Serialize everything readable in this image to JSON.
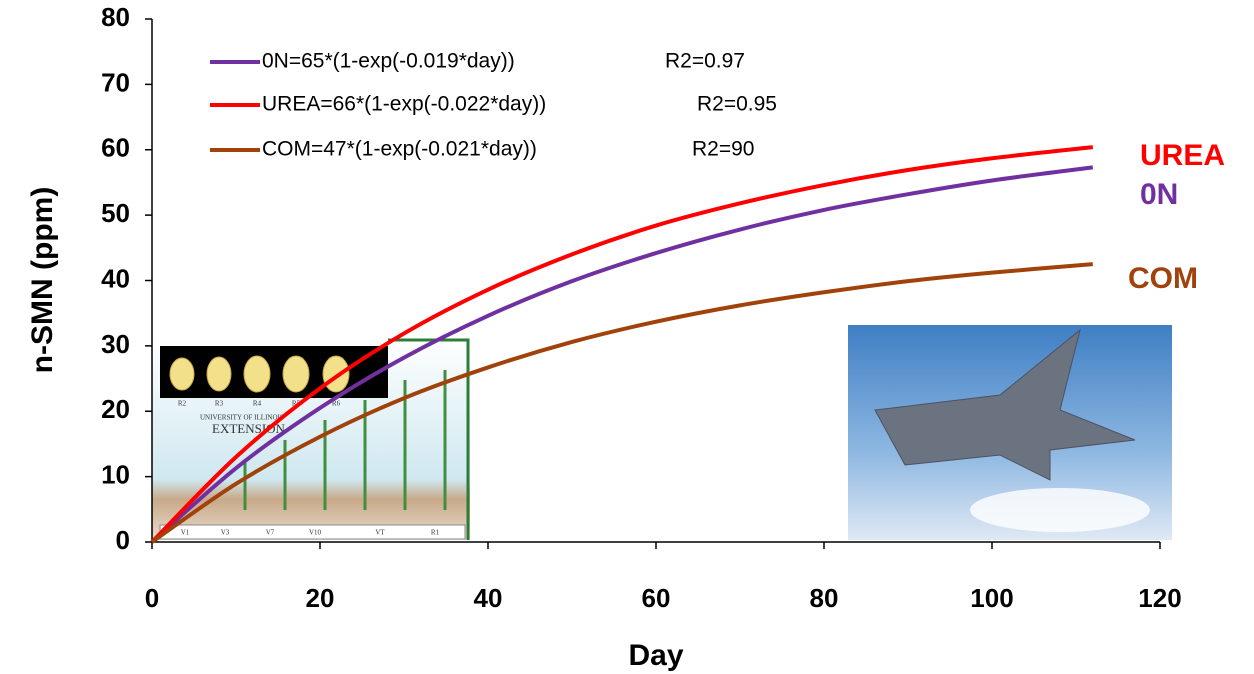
{
  "chart_data": {
    "type": "line",
    "x_label": "Day",
    "y_label": "n-SMN (ppm)",
    "x": [
      0,
      10,
      20,
      30,
      40,
      50,
      60,
      70,
      80,
      90,
      100,
      112
    ],
    "series": [
      {
        "name": "0N=65*(1-exp(-0.019*day))",
        "r2_label": "R2=0.97",
        "end_label": "0N",
        "color": "#7030a0",
        "values": [
          0,
          11.3,
          20.5,
          28.2,
          34.6,
          39.9,
          44.2,
          47.8,
          50.8,
          53.2,
          55.3,
          57.3
        ]
      },
      {
        "name": "UREA=66*(1-exp(-0.022*day))",
        "r2_label": "R2=0.95",
        "end_label": "UREA",
        "color": "#ff0000",
        "values": [
          0,
          13.0,
          23.5,
          31.9,
          38.6,
          44.0,
          48.4,
          51.8,
          54.6,
          56.9,
          58.7,
          60.4
        ]
      },
      {
        "name": "COM=47*(1-exp(-0.021*day))",
        "r2_label": "R2=90",
        "end_label": "COM",
        "color": "#a0420a",
        "values": [
          0,
          8.9,
          16.1,
          22.0,
          26.7,
          30.6,
          33.7,
          36.2,
          38.2,
          39.9,
          41.2,
          42.5
        ]
      }
    ],
    "xlim": [
      0,
      120
    ],
    "xticks": [
      0,
      20,
      40,
      60,
      80,
      100,
      120
    ],
    "ylim": [
      0,
      80
    ],
    "yticks": [
      0,
      10,
      20,
      30,
      40,
      50,
      60,
      70,
      80
    ],
    "inset_texts": [
      "R2",
      "R3",
      "R4",
      "R5",
      "R6",
      "UNIVERSITY OF ILLINOIS",
      "EXTENSION",
      "V1",
      "V3",
      "V7",
      "V10",
      "VT",
      "R1"
    ]
  }
}
